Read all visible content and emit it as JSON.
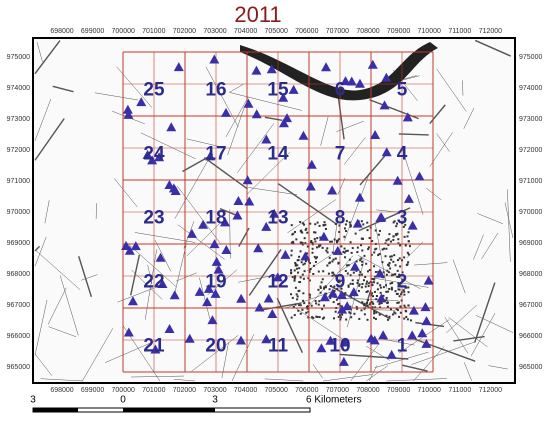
{
  "title": "2011",
  "x_labels": [
    698000,
    699000,
    700000,
    701000,
    702000,
    703000,
    704000,
    705000,
    706000,
    707000,
    708000,
    709000,
    710000,
    711000,
    712000
  ],
  "y_labels": [
    975000,
    974000,
    973000,
    972000,
    971000,
    970000,
    969000,
    968000,
    967000,
    966000,
    965000
  ],
  "cells": [
    [
      25,
      16,
      15,
      6,
      5
    ],
    [
      24,
      17,
      14,
      7,
      4
    ],
    [
      23,
      18,
      13,
      8,
      3
    ],
    [
      22,
      19,
      12,
      9,
      2
    ],
    [
      21,
      20,
      11,
      10,
      1
    ]
  ],
  "scale_labels": [
    "3",
    "0",
    "3",
    "6 Kilometers"
  ]
}
